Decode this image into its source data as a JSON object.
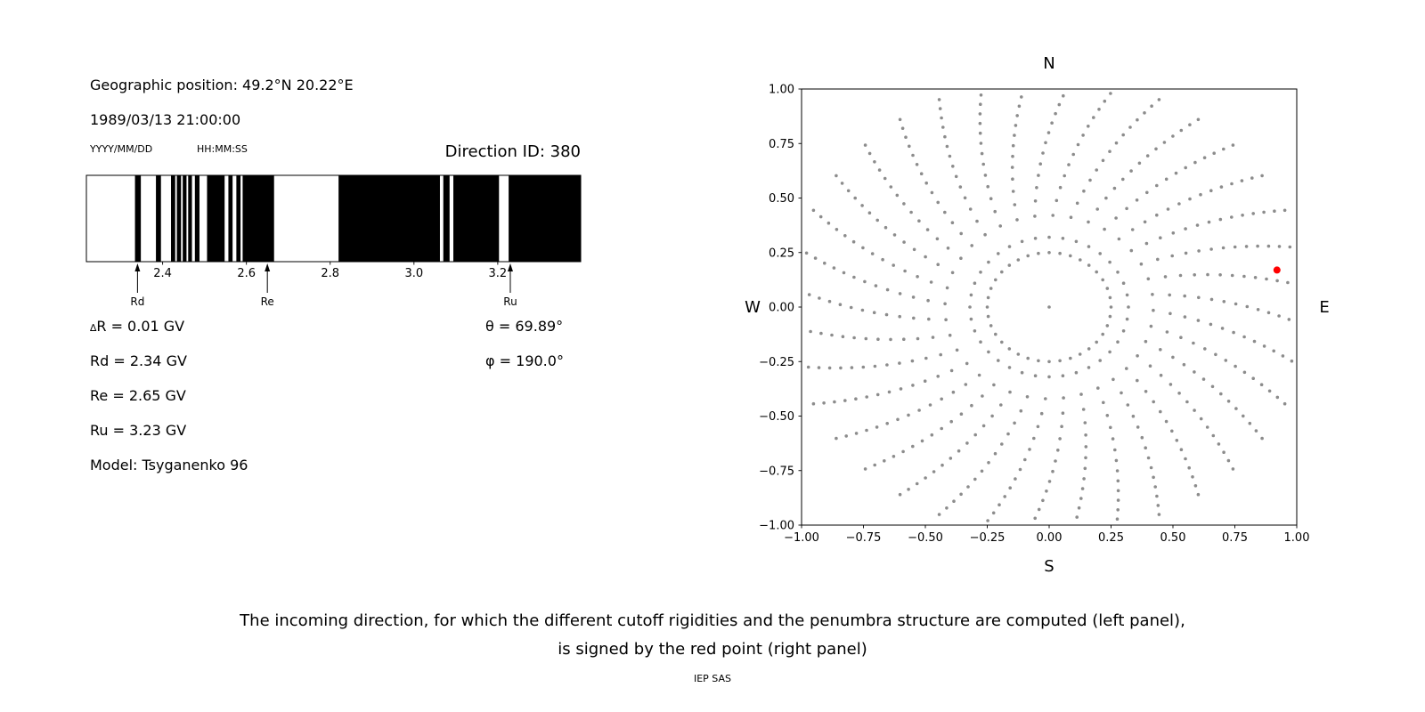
{
  "left_panel": {
    "geographic_position": "Geographic position: 49.2°N 20.22°E",
    "datetime": "1989/03/13 21:00:00",
    "date_format_label": "YYYY/MM/DD",
    "time_format_label": "HH:MM:SS",
    "direction_id": "Direction ID: 380",
    "parameters": {
      "delta_symbol": "∆",
      "delta_r": "R = 0.01 GV",
      "rd": "Rd = 2.34 GV",
      "re": "Re = 2.65 GV",
      "ru": "Ru = 3.23 GV",
      "model": "Model: Tsyganenko 96",
      "theta": "θ = 69.89°",
      "phi": "φ = 190.0°"
    }
  },
  "caption": {
    "line1": "The incoming direction, for which the different cutoff rigidities and the penumbra structure are computed (left panel),",
    "line2": "is signed by the red point (right panel)",
    "credit": "IEP SAS"
  },
  "chart_data": [
    {
      "type": "bar",
      "description": "penumbra structure: black bands = allowed rigidity intervals (GV)",
      "xlim": [
        2.218,
        3.398
      ],
      "xticks": [
        2.4,
        2.6,
        2.8,
        3.0,
        3.2
      ],
      "xtick_labels": [
        "2.4",
        "2.6",
        "2.8",
        "3.0",
        "3.2"
      ],
      "band_color": "#000000",
      "bands": [
        [
          2.334,
          2.348
        ],
        [
          2.384,
          2.396
        ],
        [
          2.42,
          2.43
        ],
        [
          2.434,
          2.444
        ],
        [
          2.448,
          2.457
        ],
        [
          2.461,
          2.47
        ],
        [
          2.477,
          2.488
        ],
        [
          2.506,
          2.548
        ],
        [
          2.557,
          2.567
        ],
        [
          2.576,
          2.586
        ],
        [
          2.591,
          2.666
        ],
        [
          2.82,
          3.062
        ],
        [
          3.07,
          3.085
        ],
        [
          3.094,
          3.203
        ],
        [
          3.226,
          3.398
        ]
      ],
      "markers": [
        {
          "label": "Rd",
          "value": 2.34
        },
        {
          "label": "Re",
          "value": 2.65
        },
        {
          "label": "Ru",
          "value": 3.23
        }
      ]
    },
    {
      "type": "scatter",
      "description": "asymptotic directions; red point marks the incoming direction",
      "xlim": [
        -1,
        1
      ],
      "ylim": [
        -1,
        1
      ],
      "xticks": [
        -1,
        -0.75,
        -0.5,
        -0.25,
        0,
        0.25,
        0.5,
        0.75,
        1
      ],
      "xtick_labels": [
        "−1.00",
        "−0.75",
        "−0.50",
        "−0.25",
        "0.00",
        "0.25",
        "0.50",
        "0.75",
        "1.00"
      ],
      "yticks": [
        -1,
        -0.75,
        -0.5,
        -0.25,
        0,
        0.25,
        0.5,
        0.75,
        1
      ],
      "ytick_labels": [
        "−1.00",
        "−0.75",
        "−0.50",
        "−0.25",
        "0.00",
        "0.25",
        "0.50",
        "0.75",
        "1.00"
      ],
      "compass": {
        "top": "N",
        "bottom": "S",
        "left": "W",
        "right": "E"
      },
      "dot_color": "#8c8c8c",
      "center_point": [
        0,
        0
      ],
      "inner_ring": {
        "radius": 0.25,
        "count": 36
      },
      "spokes": {
        "count": 36,
        "start_angle_deg": 0,
        "step_deg": 10,
        "r_start": 0.32,
        "r_end": 1.05,
        "points_per_spoke": 15,
        "radial_easing": 0.75,
        "curvature_deg": -15
      },
      "red_point": {
        "x": 0.92,
        "y": 0.17,
        "color": "#ff0000"
      }
    }
  ]
}
